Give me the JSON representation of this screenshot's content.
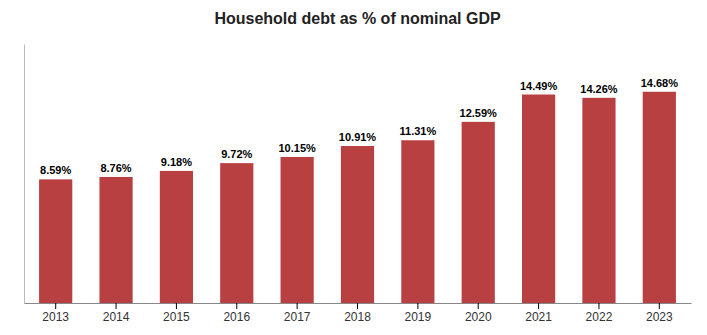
{
  "chart_data": {
    "type": "bar",
    "title": "Household debt as % of nominal GDP",
    "categories": [
      "2013",
      "2014",
      "2015",
      "2016",
      "2017",
      "2018",
      "2019",
      "2020",
      "2021",
      "2022",
      "2023"
    ],
    "values": [
      8.59,
      8.76,
      9.18,
      9.72,
      10.15,
      10.91,
      11.31,
      12.59,
      14.49,
      14.26,
      14.68
    ],
    "value_labels": [
      "8.59%",
      "8.76%",
      "9.18%",
      "9.72%",
      "10.15%",
      "10.91%",
      "11.31%",
      "12.59%",
      "14.49%",
      "14.26%",
      "14.68%"
    ],
    "data_labels": true,
    "color": "#b94040",
    "ylim": [
      0,
      18
    ],
    "grid": false,
    "tick_labels": "x"
  }
}
